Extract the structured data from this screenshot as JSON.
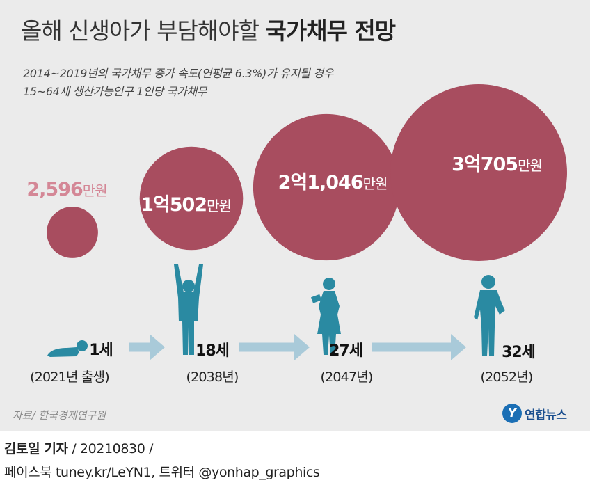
{
  "header": {
    "title_light": "올해 신생아가 부담해야할",
    "title_bold": "국가채무 전망",
    "subtitle1": "2014~2019년의 국가채무 증가 속도(연평균 6.3%)가 유지될 경우",
    "subtitle2": "15~64세 생산가능인구 1인당 국가채무"
  },
  "chart_data": {
    "type": "bubble",
    "title": "올해 신생아가 부담해야할 국가채무 전망",
    "unit": "만원",
    "categories": [
      "1세",
      "18세",
      "27세",
      "32세"
    ],
    "years": [
      "(2021년 출생)",
      "(2038년)",
      "(2047년)",
      "(2052년)"
    ],
    "values": [
      2596,
      10502,
      21046,
      30705
    ],
    "labels": [
      {
        "num": "2,596",
        "unit": "만원"
      },
      {
        "num": "1억502",
        "unit": "만원"
      },
      {
        "num": "2억1,046",
        "unit": "만원"
      },
      {
        "num": "3억705",
        "unit": "만원"
      }
    ],
    "colors": {
      "bubble": "#a84d5f",
      "first_label": "#d48796",
      "label": "#ffffff",
      "figure": "#2a8aa2",
      "arrow": "#a9cad9"
    }
  },
  "footer": {
    "source": "자료/ 한국경제연구원",
    "logo_mark": "Y",
    "logo_text": "연합뉴스",
    "credit_name": "김토일 기자",
    "credit_rest": " / 20210830 /",
    "credit_line2": "페이스북 tuney.kr/LeYN1, 트위터 @yonhap_graphics"
  }
}
